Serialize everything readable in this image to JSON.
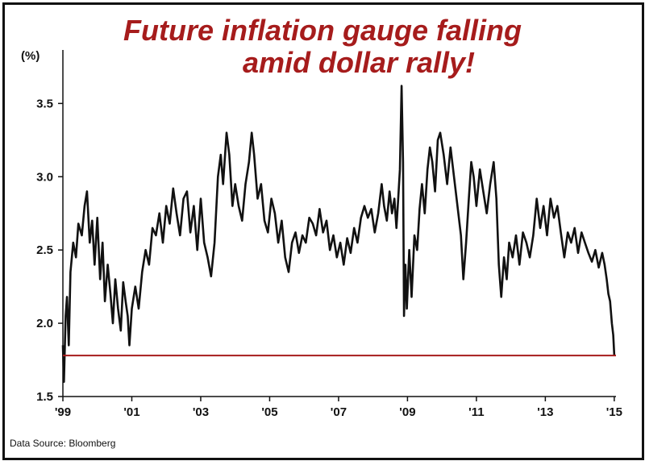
{
  "chart_data": {
    "type": "line",
    "title_line1": "Future inflation gauge falling",
    "title_line2": "amid dollar rally!",
    "ylabel": "(%)",
    "source": "Data Source:  Bloomberg",
    "ylim": [
      1.5,
      3.7
    ],
    "xlim": [
      1999.0,
      2015.05
    ],
    "yticks": [
      "1.5",
      "2.0",
      "2.5",
      "3.0",
      "3.5"
    ],
    "xticks": [
      {
        "label": "'99",
        "x": 1999.0
      },
      {
        "label": "'01",
        "x": 2001.0
      },
      {
        "label": "'03",
        "x": 2003.0
      },
      {
        "label": "'05",
        "x": 2005.0
      },
      {
        "label": "'07",
        "x": 2007.0
      },
      {
        "label": "'09",
        "x": 2009.0
      },
      {
        "label": "'11",
        "x": 2011.0
      },
      {
        "label": "'13",
        "x": 2013.0
      },
      {
        "label": "'15",
        "x": 2015.0
      }
    ],
    "reference_line": {
      "y": 1.78,
      "color": "#a61c1c"
    },
    "series": [
      {
        "color": "#111111",
        "points": [
          [
            1999.0,
            1.85
          ],
          [
            1999.03,
            1.6
          ],
          [
            1999.08,
            2.05
          ],
          [
            1999.12,
            2.18
          ],
          [
            1999.17,
            1.85
          ],
          [
            1999.22,
            2.35
          ],
          [
            1999.3,
            2.55
          ],
          [
            1999.38,
            2.45
          ],
          [
            1999.45,
            2.68
          ],
          [
            1999.55,
            2.6
          ],
          [
            1999.63,
            2.8
          ],
          [
            1999.7,
            2.9
          ],
          [
            1999.78,
            2.55
          ],
          [
            1999.85,
            2.7
          ],
          [
            1999.92,
            2.4
          ],
          [
            2000.0,
            2.72
          ],
          [
            2000.08,
            2.3
          ],
          [
            2000.15,
            2.55
          ],
          [
            2000.22,
            2.15
          ],
          [
            2000.3,
            2.4
          ],
          [
            2000.38,
            2.2
          ],
          [
            2000.45,
            2.0
          ],
          [
            2000.52,
            2.3
          ],
          [
            2000.6,
            2.1
          ],
          [
            2000.68,
            1.95
          ],
          [
            2000.75,
            2.28
          ],
          [
            2000.82,
            2.15
          ],
          [
            2000.88,
            2.05
          ],
          [
            2000.93,
            1.85
          ],
          [
            2001.0,
            2.1
          ],
          [
            2001.1,
            2.25
          ],
          [
            2001.2,
            2.1
          ],
          [
            2001.3,
            2.35
          ],
          [
            2001.4,
            2.5
          ],
          [
            2001.5,
            2.4
          ],
          [
            2001.6,
            2.65
          ],
          [
            2001.7,
            2.6
          ],
          [
            2001.8,
            2.75
          ],
          [
            2001.9,
            2.55
          ],
          [
            2002.0,
            2.8
          ],
          [
            2002.1,
            2.68
          ],
          [
            2002.2,
            2.92
          ],
          [
            2002.3,
            2.75
          ],
          [
            2002.4,
            2.6
          ],
          [
            2002.5,
            2.85
          ],
          [
            2002.6,
            2.9
          ],
          [
            2002.7,
            2.62
          ],
          [
            2002.8,
            2.8
          ],
          [
            2002.9,
            2.5
          ],
          [
            2003.0,
            2.85
          ],
          [
            2003.1,
            2.55
          ],
          [
            2003.2,
            2.45
          ],
          [
            2003.3,
            2.32
          ],
          [
            2003.4,
            2.55
          ],
          [
            2003.5,
            3.0
          ],
          [
            2003.58,
            3.15
          ],
          [
            2003.65,
            2.95
          ],
          [
            2003.75,
            3.3
          ],
          [
            2003.83,
            3.15
          ],
          [
            2003.92,
            2.8
          ],
          [
            2004.0,
            2.95
          ],
          [
            2004.1,
            2.8
          ],
          [
            2004.2,
            2.7
          ],
          [
            2004.3,
            2.95
          ],
          [
            2004.4,
            3.1
          ],
          [
            2004.48,
            3.3
          ],
          [
            2004.55,
            3.15
          ],
          [
            2004.65,
            2.85
          ],
          [
            2004.75,
            2.95
          ],
          [
            2004.85,
            2.7
          ],
          [
            2004.95,
            2.62
          ],
          [
            2005.05,
            2.85
          ],
          [
            2005.15,
            2.75
          ],
          [
            2005.25,
            2.55
          ],
          [
            2005.35,
            2.7
          ],
          [
            2005.45,
            2.45
          ],
          [
            2005.55,
            2.35
          ],
          [
            2005.65,
            2.55
          ],
          [
            2005.75,
            2.62
          ],
          [
            2005.85,
            2.48
          ],
          [
            2005.95,
            2.6
          ],
          [
            2006.05,
            2.55
          ],
          [
            2006.15,
            2.72
          ],
          [
            2006.25,
            2.68
          ],
          [
            2006.35,
            2.6
          ],
          [
            2006.45,
            2.78
          ],
          [
            2006.55,
            2.62
          ],
          [
            2006.65,
            2.7
          ],
          [
            2006.75,
            2.5
          ],
          [
            2006.85,
            2.6
          ],
          [
            2006.95,
            2.45
          ],
          [
            2007.05,
            2.55
          ],
          [
            2007.15,
            2.4
          ],
          [
            2007.25,
            2.58
          ],
          [
            2007.35,
            2.48
          ],
          [
            2007.45,
            2.65
          ],
          [
            2007.55,
            2.55
          ],
          [
            2007.65,
            2.72
          ],
          [
            2007.75,
            2.8
          ],
          [
            2007.85,
            2.72
          ],
          [
            2007.95,
            2.78
          ],
          [
            2008.05,
            2.62
          ],
          [
            2008.15,
            2.75
          ],
          [
            2008.25,
            2.95
          ],
          [
            2008.32,
            2.8
          ],
          [
            2008.4,
            2.7
          ],
          [
            2008.48,
            2.9
          ],
          [
            2008.55,
            2.75
          ],
          [
            2008.62,
            2.85
          ],
          [
            2008.68,
            2.65
          ],
          [
            2008.73,
            2.85
          ],
          [
            2008.78,
            3.05
          ],
          [
            2008.83,
            3.62
          ],
          [
            2008.87,
            3.1
          ],
          [
            2008.9,
            2.05
          ],
          [
            2008.94,
            2.4
          ],
          [
            2008.98,
            2.1
          ],
          [
            2009.05,
            2.5
          ],
          [
            2009.12,
            2.18
          ],
          [
            2009.2,
            2.6
          ],
          [
            2009.28,
            2.5
          ],
          [
            2009.35,
            2.78
          ],
          [
            2009.42,
            2.95
          ],
          [
            2009.5,
            2.75
          ],
          [
            2009.58,
            3.05
          ],
          [
            2009.65,
            3.2
          ],
          [
            2009.72,
            3.1
          ],
          [
            2009.8,
            2.9
          ],
          [
            2009.88,
            3.25
          ],
          [
            2009.95,
            3.3
          ],
          [
            2010.05,
            3.15
          ],
          [
            2010.15,
            2.95
          ],
          [
            2010.25,
            3.2
          ],
          [
            2010.35,
            3.0
          ],
          [
            2010.45,
            2.8
          ],
          [
            2010.55,
            2.6
          ],
          [
            2010.62,
            2.3
          ],
          [
            2010.7,
            2.55
          ],
          [
            2010.78,
            2.85
          ],
          [
            2010.85,
            3.1
          ],
          [
            2010.92,
            3.0
          ],
          [
            2011.0,
            2.8
          ],
          [
            2011.1,
            3.05
          ],
          [
            2011.2,
            2.9
          ],
          [
            2011.3,
            2.75
          ],
          [
            2011.4,
            2.95
          ],
          [
            2011.5,
            3.1
          ],
          [
            2011.58,
            2.85
          ],
          [
            2011.65,
            2.4
          ],
          [
            2011.72,
            2.18
          ],
          [
            2011.8,
            2.45
          ],
          [
            2011.88,
            2.3
          ],
          [
            2011.95,
            2.55
          ],
          [
            2012.05,
            2.45
          ],
          [
            2012.15,
            2.6
          ],
          [
            2012.25,
            2.4
          ],
          [
            2012.35,
            2.62
          ],
          [
            2012.45,
            2.55
          ],
          [
            2012.55,
            2.45
          ],
          [
            2012.65,
            2.6
          ],
          [
            2012.75,
            2.85
          ],
          [
            2012.85,
            2.65
          ],
          [
            2012.95,
            2.8
          ],
          [
            2013.05,
            2.6
          ],
          [
            2013.15,
            2.85
          ],
          [
            2013.25,
            2.72
          ],
          [
            2013.35,
            2.8
          ],
          [
            2013.45,
            2.62
          ],
          [
            2013.55,
            2.45
          ],
          [
            2013.65,
            2.62
          ],
          [
            2013.75,
            2.55
          ],
          [
            2013.85,
            2.65
          ],
          [
            2013.95,
            2.48
          ],
          [
            2014.05,
            2.62
          ],
          [
            2014.15,
            2.55
          ],
          [
            2014.25,
            2.48
          ],
          [
            2014.35,
            2.42
          ],
          [
            2014.45,
            2.5
          ],
          [
            2014.55,
            2.38
          ],
          [
            2014.65,
            2.48
          ],
          [
            2014.72,
            2.4
          ],
          [
            2014.78,
            2.3
          ],
          [
            2014.83,
            2.2
          ],
          [
            2014.88,
            2.15
          ],
          [
            2014.93,
            2.0
          ],
          [
            2014.97,
            1.92
          ],
          [
            2015.0,
            1.78
          ]
        ]
      }
    ]
  }
}
